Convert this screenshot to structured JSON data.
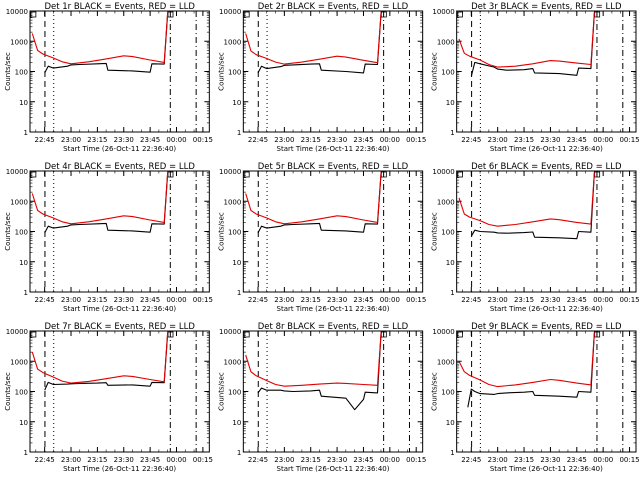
{
  "colors": {
    "events": "#000000",
    "lld": "#e00000",
    "axes": "#000000",
    "background": "#ffffff"
  },
  "chart_data": [
    {
      "type": "line",
      "title": "Det 1r BLACK = Events, RED = LLD",
      "xlabel": "Start Time (26-Oct-11 22:36:40)",
      "ylabel": "Counts/sec",
      "x_ticks": [
        "22:45",
        "23:00",
        "23:15",
        "23:30",
        "23:45",
        "00:00",
        "00:15"
      ],
      "y_ticks": [
        "1",
        "10",
        "100",
        "1000",
        "10000"
      ],
      "ylim": [
        1,
        10000
      ],
      "y_scale": "log",
      "markers": [
        "dashed",
        "dotted",
        "dash-dot",
        "dash-dot"
      ],
      "series": [
        {
          "name": "Events",
          "x": [
            "22:45",
            "22:47",
            "22:50",
            "22:58",
            "23:00",
            "23:05",
            "23:15",
            "23:20",
            "23:21",
            "23:35",
            "23:45",
            "23:46",
            "23:53",
            "23:55"
          ],
          "y": [
            90,
            150,
            130,
            150,
            165,
            170,
            180,
            185,
            110,
            105,
            95,
            180,
            175,
            9000
          ]
        },
        {
          "name": "LLD",
          "x": [
            "22:38",
            "22:41",
            "22:44",
            "22:50",
            "22:55",
            "23:00",
            "23:10",
            "23:20",
            "23:30",
            "23:35",
            "23:45",
            "23:53",
            "23:55"
          ],
          "y": [
            1800,
            500,
            380,
            280,
            210,
            180,
            210,
            260,
            330,
            310,
            240,
            200,
            9000
          ]
        }
      ]
    },
    {
      "type": "line",
      "title": "Det 2r BLACK = Events, RED = LLD",
      "xlabel": "Start Time (26-Oct-11 22:36:40)",
      "ylabel": "Counts/sec",
      "x_ticks": [
        "22:45",
        "23:00",
        "23:15",
        "23:30",
        "23:45",
        "00:00",
        "00:15"
      ],
      "y_ticks": [
        "1",
        "10",
        "100",
        "1000",
        "10000"
      ],
      "ylim": [
        1,
        10000
      ],
      "y_scale": "log",
      "markers": [
        "dashed",
        "dotted",
        "dash-dot",
        "dash-dot"
      ],
      "series": [
        {
          "name": "Events",
          "x": [
            "22:45",
            "22:47",
            "22:50",
            "22:58",
            "23:00",
            "23:05",
            "23:15",
            "23:20",
            "23:21",
            "23:35",
            "23:45",
            "23:46",
            "23:53",
            "23:55"
          ],
          "y": [
            90,
            150,
            125,
            145,
            160,
            165,
            175,
            180,
            110,
            100,
            90,
            175,
            170,
            9000
          ]
        },
        {
          "name": "LLD",
          "x": [
            "22:38",
            "22:41",
            "22:44",
            "22:50",
            "22:55",
            "23:00",
            "23:10",
            "23:20",
            "23:30",
            "23:35",
            "23:45",
            "23:53",
            "23:55"
          ],
          "y": [
            1800,
            480,
            360,
            270,
            205,
            175,
            205,
            255,
            320,
            300,
            235,
            195,
            9000
          ]
        }
      ]
    },
    {
      "type": "line",
      "title": "Det 3r BLACK = Events, RED = LLD",
      "xlabel": "Start Time (26-Oct-11 22:36:40)",
      "ylabel": "Counts/sec",
      "x_ticks": [
        "22:45",
        "23:00",
        "23:15",
        "23:30",
        "23:45",
        "00:00",
        "00:15"
      ],
      "y_ticks": [
        "1",
        "10",
        "100",
        "1000",
        "10000"
      ],
      "ylim": [
        1,
        10000
      ],
      "y_scale": "log",
      "markers": [
        "dashed",
        "dotted",
        "dash-dot",
        "dash-dot"
      ],
      "series": [
        {
          "name": "Events",
          "x": [
            "22:45",
            "22:47",
            "22:50",
            "22:58",
            "23:00",
            "23:05",
            "23:15",
            "23:20",
            "23:21",
            "23:35",
            "23:45",
            "23:46",
            "23:53",
            "23:55"
          ],
          "y": [
            70,
            200,
            180,
            140,
            120,
            110,
            115,
            125,
            90,
            85,
            75,
            130,
            125,
            9000
          ]
        },
        {
          "name": "LLD",
          "x": [
            "22:38",
            "22:41",
            "22:44",
            "22:50",
            "22:55",
            "23:00",
            "23:10",
            "23:20",
            "23:30",
            "23:35",
            "23:45",
            "23:53",
            "23:55"
          ],
          "y": [
            1200,
            400,
            320,
            240,
            170,
            140,
            150,
            180,
            230,
            220,
            190,
            170,
            9000
          ]
        }
      ]
    },
    {
      "type": "line",
      "title": "Det 4r BLACK = Events, RED = LLD",
      "xlabel": "Start Time (26-Oct-11 22:36:40)",
      "ylabel": "Counts/sec",
      "x_ticks": [
        "22:45",
        "23:00",
        "23:15",
        "23:30",
        "23:45",
        "00:00",
        "00:15"
      ],
      "y_ticks": [
        "1",
        "10",
        "100",
        "1000",
        "10000"
      ],
      "ylim": [
        1,
        10000
      ],
      "y_scale": "log",
      "markers": [
        "dashed",
        "dotted",
        "dash-dot",
        "dash-dot"
      ],
      "series": [
        {
          "name": "Events",
          "x": [
            "22:45",
            "22:47",
            "22:50",
            "22:58",
            "23:00",
            "23:05",
            "23:15",
            "23:20",
            "23:21",
            "23:35",
            "23:45",
            "23:46",
            "23:53",
            "23:55"
          ],
          "y": [
            90,
            150,
            130,
            150,
            165,
            170,
            180,
            185,
            110,
            105,
            95,
            180,
            175,
            9000
          ]
        },
        {
          "name": "LLD",
          "x": [
            "22:38",
            "22:41",
            "22:44",
            "22:50",
            "22:55",
            "23:00",
            "23:10",
            "23:20",
            "23:30",
            "23:35",
            "23:45",
            "23:53",
            "23:55"
          ],
          "y": [
            1800,
            500,
            380,
            280,
            210,
            180,
            210,
            260,
            330,
            310,
            240,
            200,
            9000
          ]
        }
      ]
    },
    {
      "type": "line",
      "title": "Det 5r BLACK = Events, RED = LLD",
      "xlabel": "Start Time (26-Oct-11 22:36:40)",
      "ylabel": "Counts/sec",
      "x_ticks": [
        "22:45",
        "23:00",
        "23:15",
        "23:30",
        "23:45",
        "00:00",
        "00:15"
      ],
      "y_ticks": [
        "1",
        "10",
        "100",
        "1000",
        "10000"
      ],
      "ylim": [
        1,
        10000
      ],
      "y_scale": "log",
      "markers": [
        "dashed",
        "dotted",
        "dash-dot",
        "dash-dot"
      ],
      "series": [
        {
          "name": "Events",
          "x": [
            "22:45",
            "22:47",
            "22:50",
            "22:58",
            "23:00",
            "23:05",
            "23:15",
            "23:20",
            "23:21",
            "23:35",
            "23:45",
            "23:46",
            "23:53",
            "23:55"
          ],
          "y": [
            90,
            150,
            130,
            150,
            165,
            170,
            180,
            185,
            110,
            105,
            95,
            180,
            175,
            9000
          ]
        },
        {
          "name": "LLD",
          "x": [
            "22:38",
            "22:41",
            "22:44",
            "22:50",
            "22:55",
            "23:00",
            "23:10",
            "23:20",
            "23:30",
            "23:35",
            "23:45",
            "23:53",
            "23:55"
          ],
          "y": [
            1800,
            500,
            380,
            280,
            210,
            180,
            210,
            260,
            330,
            310,
            240,
            200,
            9000
          ]
        }
      ]
    },
    {
      "type": "line",
      "title": "Det 6r BLACK = Events, RED = LLD",
      "xlabel": "Start Time (26-Oct-11 22:36:40)",
      "ylabel": "Counts/sec",
      "x_ticks": [
        "22:45",
        "23:00",
        "23:15",
        "23:30",
        "23:45",
        "00:00",
        "00:15"
      ],
      "y_ticks": [
        "1",
        "10",
        "100",
        "1000",
        "10000"
      ],
      "ylim": [
        1,
        10000
      ],
      "y_scale": "log",
      "markers": [
        "dashed",
        "dotted",
        "dash-dot",
        "dash-dot"
      ],
      "series": [
        {
          "name": "Events",
          "x": [
            "22:45",
            "22:47",
            "22:50",
            "22:58",
            "23:00",
            "23:05",
            "23:15",
            "23:20",
            "23:21",
            "23:35",
            "23:45",
            "23:46",
            "23:53",
            "23:55"
          ],
          "y": [
            70,
            110,
            100,
            95,
            90,
            88,
            92,
            96,
            65,
            62,
            58,
            100,
            95,
            9000
          ]
        },
        {
          "name": "LLD",
          "x": [
            "22:38",
            "22:41",
            "22:44",
            "22:50",
            "22:55",
            "23:00",
            "23:10",
            "23:20",
            "23:30",
            "23:35",
            "23:45",
            "23:53",
            "23:55"
          ],
          "y": [
            1300,
            380,
            300,
            230,
            170,
            150,
            170,
            210,
            260,
            245,
            200,
            175,
            9000
          ]
        }
      ]
    },
    {
      "type": "line",
      "title": "Det 7r BLACK = Events, RED = LLD",
      "xlabel": "Start Time (26-Oct-11 22:36:40)",
      "ylabel": "Counts/sec",
      "x_ticks": [
        "22:45",
        "23:00",
        "23:15",
        "23:30",
        "23:45",
        "00:00",
        "00:15"
      ],
      "y_ticks": [
        "1",
        "10",
        "100",
        "1000",
        "10000"
      ],
      "ylim": [
        1,
        10000
      ],
      "y_scale": "log",
      "markers": [
        "dashed",
        "dotted",
        "dash-dot",
        "dash-dot"
      ],
      "series": [
        {
          "name": "Events",
          "x": [
            "22:45",
            "22:47",
            "22:50",
            "22:58",
            "23:00",
            "23:05",
            "23:15",
            "23:20",
            "23:21",
            "23:35",
            "23:45",
            "23:46",
            "23:53",
            "23:55"
          ],
          "y": [
            110,
            200,
            170,
            175,
            180,
            185,
            190,
            195,
            160,
            165,
            150,
            200,
            195,
            9000
          ]
        },
        {
          "name": "LLD",
          "x": [
            "22:38",
            "22:41",
            "22:44",
            "22:50",
            "22:55",
            "23:00",
            "23:10",
            "23:20",
            "23:30",
            "23:35",
            "23:45",
            "23:53",
            "23:55"
          ],
          "y": [
            2000,
            550,
            420,
            300,
            220,
            190,
            215,
            265,
            330,
            315,
            250,
            210,
            9000
          ]
        }
      ]
    },
    {
      "type": "line",
      "title": "Det 8r BLACK = Events, RED = LLD",
      "xlabel": "Start Time (26-Oct-11 22:36:40)",
      "ylabel": "Counts/sec",
      "x_ticks": [
        "22:45",
        "23:00",
        "23:15",
        "23:30",
        "23:45",
        "00:00",
        "00:15"
      ],
      "y_ticks": [
        "1",
        "10",
        "100",
        "1000",
        "10000"
      ],
      "ylim": [
        1,
        10000
      ],
      "y_scale": "log",
      "markers": [
        "dashed",
        "dotted",
        "dash-dot",
        "dash-dot"
      ],
      "series": [
        {
          "name": "Events",
          "x": [
            "22:45",
            "22:47",
            "22:50",
            "22:58",
            "23:00",
            "23:05",
            "23:15",
            "23:20",
            "23:21",
            "23:28",
            "23:35",
            "23:40",
            "23:45",
            "23:46",
            "23:53",
            "23:55"
          ],
          "y": [
            90,
            130,
            110,
            110,
            105,
            100,
            105,
            110,
            70,
            65,
            60,
            25,
            55,
            95,
            90,
            9000
          ]
        },
        {
          "name": "LLD",
          "x": [
            "22:38",
            "22:41",
            "22:44",
            "22:50",
            "22:55",
            "23:00",
            "23:10",
            "23:20",
            "23:30",
            "23:35",
            "23:45",
            "23:53",
            "23:55"
          ],
          "y": [
            1600,
            450,
            330,
            230,
            170,
            150,
            160,
            175,
            190,
            185,
            170,
            160,
            9000
          ]
        }
      ]
    },
    {
      "type": "line",
      "title": "Det 9r BLACK = Events, RED = LLD",
      "xlabel": "Start Time (26-Oct-11 22:36:40)",
      "ylabel": "Counts/sec",
      "x_ticks": [
        "22:45",
        "23:00",
        "23:15",
        "23:30",
        "23:45",
        "00:00",
        "00:15"
      ],
      "y_ticks": [
        "1",
        "10",
        "100",
        "1000",
        "10000"
      ],
      "ylim": [
        1,
        10000
      ],
      "y_scale": "log",
      "markers": [
        "dashed",
        "dotted",
        "dash-dot",
        "dash-dot"
      ],
      "series": [
        {
          "name": "Events",
          "x": [
            "22:43",
            "22:45",
            "22:47",
            "22:50",
            "22:58",
            "23:00",
            "23:05",
            "23:15",
            "23:20",
            "23:21",
            "23:35",
            "23:45",
            "23:46",
            "23:53",
            "23:55"
          ],
          "y": [
            30,
            120,
            100,
            85,
            80,
            85,
            90,
            95,
            100,
            75,
            70,
            65,
            100,
            95,
            9000
          ]
        },
        {
          "name": "LLD",
          "x": [
            "22:38",
            "22:41",
            "22:44",
            "22:50",
            "22:55",
            "23:00",
            "23:10",
            "23:20",
            "23:30",
            "23:35",
            "23:45",
            "23:53",
            "23:55"
          ],
          "y": [
            1000,
            450,
            340,
            240,
            170,
            145,
            165,
            200,
            250,
            235,
            190,
            165,
            9000
          ]
        }
      ]
    }
  ]
}
